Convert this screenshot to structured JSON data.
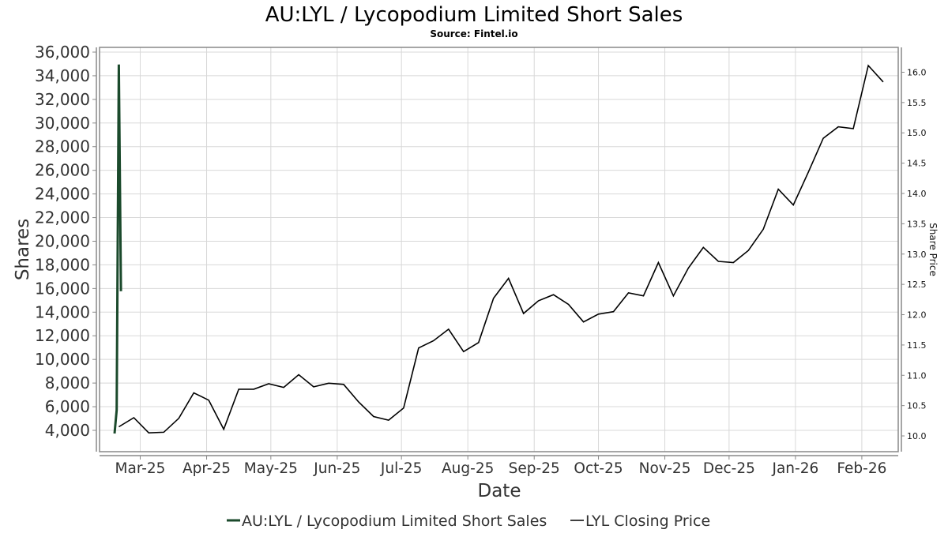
{
  "chart_data": {
    "type": "line",
    "title": "AU:LYL / Lycopodium Limited Short Sales",
    "subtitle": "Source: Fintel.io",
    "xlabel": "Date",
    "ylabel": "Shares",
    "ylabel_right": "Share Price",
    "xlim": [
      "2025-02-10",
      "2026-02-18"
    ],
    "ylim": [
      2196,
      36400
    ],
    "ylim_right": [
      9.74,
      16.41
    ],
    "grid": true,
    "legend_position": "bottom",
    "x_ticks": [
      {
        "date": "2025-03-01",
        "label": "Mar-25"
      },
      {
        "date": "2025-04-01",
        "label": "Apr-25"
      },
      {
        "date": "2025-05-01",
        "label": "May-25"
      },
      {
        "date": "2025-06-01",
        "label": "Jun-25"
      },
      {
        "date": "2025-07-01",
        "label": "Jul-25"
      },
      {
        "date": "2025-08-01",
        "label": "Aug-25"
      },
      {
        "date": "2025-09-01",
        "label": "Sep-25"
      },
      {
        "date": "2025-10-01",
        "label": "Oct-25"
      },
      {
        "date": "2025-11-01",
        "label": "Nov-25"
      },
      {
        "date": "2025-12-01",
        "label": "Dec-25"
      },
      {
        "date": "2026-01-01",
        "label": "Jan-26"
      },
      {
        "date": "2026-02-01",
        "label": "Feb-26"
      }
    ],
    "y_ticks": [
      {
        "value": 4000,
        "label": "4,000"
      },
      {
        "value": 6000,
        "label": "6,000"
      },
      {
        "value": 8000,
        "label": "8,000"
      },
      {
        "value": 10000,
        "label": "10,000"
      },
      {
        "value": 12000,
        "label": "12,000"
      },
      {
        "value": 14000,
        "label": "14,000"
      },
      {
        "value": 16000,
        "label": "16,000"
      },
      {
        "value": 18000,
        "label": "18,000"
      },
      {
        "value": 20000,
        "label": "20,000"
      },
      {
        "value": 22000,
        "label": "22,000"
      },
      {
        "value": 24000,
        "label": "24,000"
      },
      {
        "value": 26000,
        "label": "26,000"
      },
      {
        "value": 28000,
        "label": "28,000"
      },
      {
        "value": 30000,
        "label": "30,000"
      },
      {
        "value": 32000,
        "label": "32,000"
      },
      {
        "value": 34000,
        "label": "34,000"
      },
      {
        "value": 36000,
        "label": "36,000"
      }
    ],
    "y_ticks_right": [
      {
        "value": 10.0,
        "label": "10.0"
      },
      {
        "value": 10.5,
        "label": "10.5"
      },
      {
        "value": 11.0,
        "label": "11.0"
      },
      {
        "value": 11.5,
        "label": "11.5"
      },
      {
        "value": 12.0,
        "label": "12.0"
      },
      {
        "value": 12.5,
        "label": "12.5"
      },
      {
        "value": 13.0,
        "label": "13.0"
      },
      {
        "value": 13.5,
        "label": "13.5"
      },
      {
        "value": 14.0,
        "label": "14.0"
      },
      {
        "value": 14.5,
        "label": "14.5"
      },
      {
        "value": 15.0,
        "label": "15.0"
      },
      {
        "value": 15.5,
        "label": "15.5"
      },
      {
        "value": 16.0,
        "label": "16.0"
      }
    ],
    "series": [
      {
        "name": "AU:LYL / Lycopodium Limited Short Sales",
        "axis": "left",
        "color": "#1b4a2c",
        "x": [
          "2025-02-17",
          "2025-02-18",
          "2025-02-19",
          "2025-02-20"
        ],
        "values": [
          3730,
          5720,
          34950,
          15770
        ]
      },
      {
        "name": "LYL Closing Price",
        "axis": "right",
        "color": "#000000",
        "x": [
          "2025-02-19",
          "2025-02-26",
          "2025-03-05",
          "2025-03-12",
          "2025-03-19",
          "2025-03-26",
          "2025-04-02",
          "2025-04-09",
          "2025-04-16",
          "2025-04-23",
          "2025-04-30",
          "2025-05-07",
          "2025-05-14",
          "2025-05-21",
          "2025-05-28",
          "2025-06-04",
          "2025-06-11",
          "2025-06-18",
          "2025-06-25",
          "2025-07-02",
          "2025-07-09",
          "2025-07-16",
          "2025-07-23",
          "2025-07-30",
          "2025-08-06",
          "2025-08-13",
          "2025-08-20",
          "2025-08-27",
          "2025-09-03",
          "2025-09-10",
          "2025-09-17",
          "2025-09-24",
          "2025-10-01",
          "2025-10-08",
          "2025-10-15",
          "2025-10-22",
          "2025-10-29",
          "2025-11-05",
          "2025-11-12",
          "2025-11-19",
          "2025-11-26",
          "2025-12-03",
          "2025-12-10",
          "2025-12-17",
          "2025-12-24",
          "2025-12-31",
          "2026-01-07",
          "2026-01-14",
          "2026-01-21",
          "2026-01-28",
          "2026-02-04",
          "2026-02-11"
        ],
        "values": [
          10.15,
          10.3,
          10.05,
          10.06,
          10.29,
          10.71,
          10.59,
          10.11,
          10.77,
          10.77,
          10.86,
          10.8,
          11.01,
          10.81,
          10.87,
          10.85,
          10.56,
          10.32,
          10.26,
          10.46,
          11.45,
          11.57,
          11.76,
          11.39,
          11.54,
          12.27,
          12.6,
          12.02,
          12.23,
          12.33,
          12.17,
          11.88,
          12.01,
          12.05,
          12.36,
          12.31,
          12.86,
          12.31,
          12.77,
          13.11,
          12.88,
          12.86,
          13.06,
          13.41,
          14.07,
          13.81,
          14.35,
          14.91,
          15.1,
          15.07,
          16.11,
          15.84
        ]
      }
    ]
  }
}
